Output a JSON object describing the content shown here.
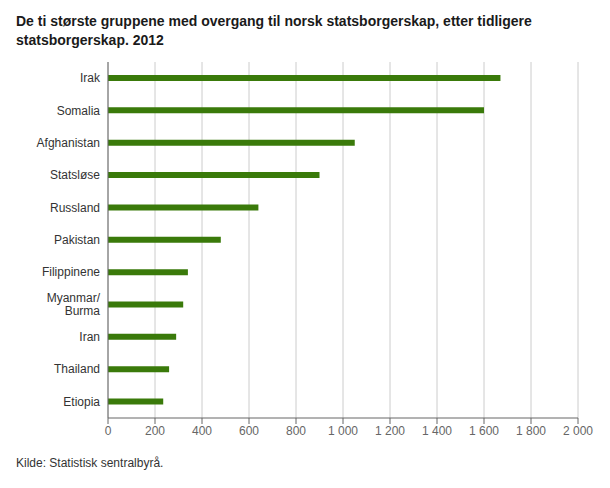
{
  "chart_data": {
    "type": "bar",
    "orientation": "horizontal",
    "title": "De ti største gruppene med overgang til norsk statsborgerskap, etter tidligere\nstatsborgerskap. 2012",
    "categories": [
      "Irak",
      "Somalia",
      "Afghanistan",
      "Statsløse",
      "Russland",
      "Pakistan",
      "Filippinene",
      "Myanmar/\n  Burma",
      "Iran",
      "Thailand",
      "Etiopia"
    ],
    "values": [
      1670,
      1600,
      1050,
      900,
      640,
      480,
      340,
      320,
      290,
      260,
      235
    ],
    "color": "#3a7a0a",
    "xlim": [
      0,
      2000
    ],
    "xticks": [
      0,
      200,
      400,
      600,
      800,
      {
        "value": 1000,
        "label": "1 000"
      },
      {
        "value": 1200,
        "label": "1 200"
      },
      {
        "value": 1400,
        "label": "1 400"
      },
      {
        "value": 1600,
        "label": "1 600"
      },
      {
        "value": 1800,
        "label": "1 800"
      },
      {
        "value": 2000,
        "label": "2 000"
      }
    ],
    "grid": true,
    "annotations": [
      "Kilde: Statistisk sentralbyrå."
    ]
  }
}
